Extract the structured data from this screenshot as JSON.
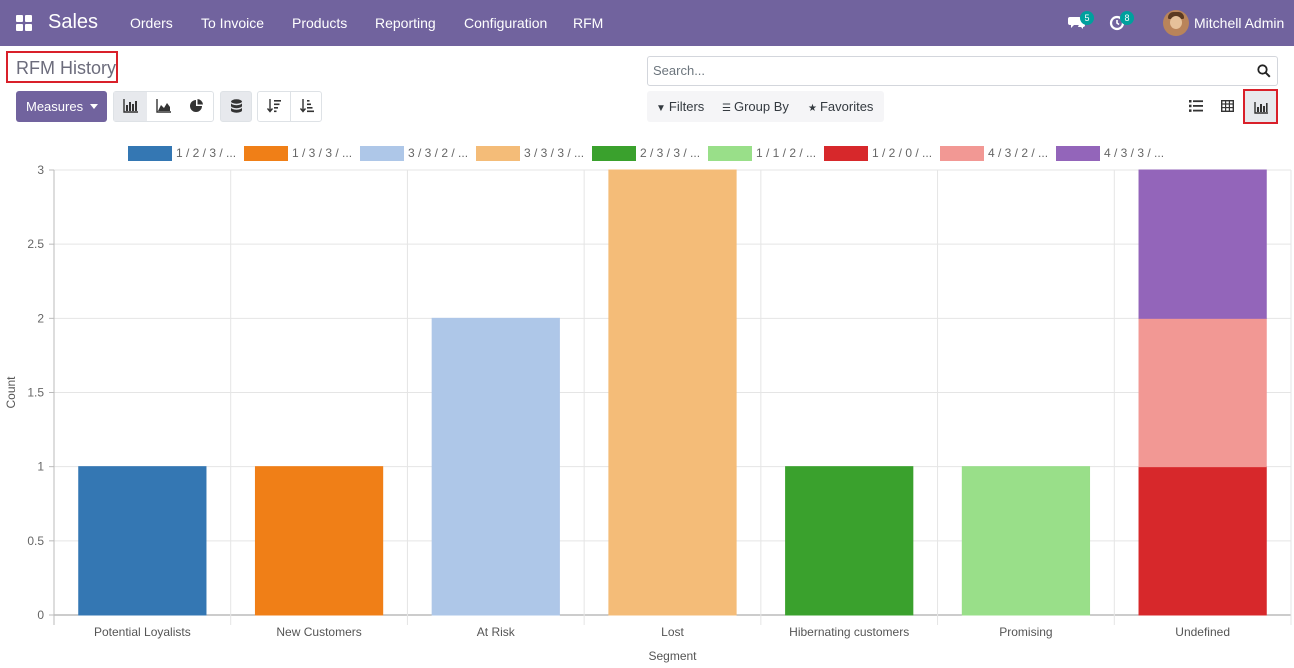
{
  "navbar": {
    "app_name": "Sales",
    "menu": [
      "Orders",
      "To Invoice",
      "Products",
      "Reporting",
      "Configuration",
      "RFM"
    ],
    "messages_badge": "5",
    "activities_badge": "8",
    "user": "Mitchell Admin",
    "color": "#71639e"
  },
  "control_panel": {
    "title": "RFM History",
    "search_placeholder": "Search...",
    "measures_label": "Measures",
    "filters_label": "Filters",
    "group_by_label": "Group By",
    "favorites_label": "Favorites",
    "view_icons": [
      "list-icon",
      "pivot-icon",
      "graph-icon"
    ],
    "active_view": "graph"
  },
  "chart_data": {
    "type": "bar",
    "stacked": true,
    "categories": [
      "Potential Loyalists",
      "New Customers",
      "At Risk",
      "Lost",
      "Hibernating customers",
      "Promising",
      "Undefined"
    ],
    "xlabel": "Segment",
    "ylabel": "Count",
    "ylim": [
      0,
      3
    ],
    "yticks": [
      "0",
      "0.5",
      "1",
      "1.5",
      "2",
      "2.5",
      "3"
    ],
    "grid": true,
    "legend_position": "top",
    "series": [
      {
        "name": "1 / 2 / 3 / ...",
        "color": "#3477b3",
        "values": [
          1,
          0,
          0,
          0,
          0,
          0,
          0
        ]
      },
      {
        "name": "1 / 3 / 3 / ...",
        "color": "#f07f17",
        "values": [
          0,
          1,
          0,
          0,
          0,
          0,
          0
        ]
      },
      {
        "name": "3 / 3 / 2 / ...",
        "color": "#aec7e8",
        "values": [
          0,
          0,
          2,
          0,
          0,
          0,
          0
        ]
      },
      {
        "name": "3 / 3 / 3 / ...",
        "color": "#f4bc78",
        "values": [
          0,
          0,
          0,
          3,
          0,
          0,
          0
        ]
      },
      {
        "name": "2 / 3 / 3 / ...",
        "color": "#3aa12d",
        "values": [
          0,
          0,
          0,
          0,
          1,
          0,
          0
        ]
      },
      {
        "name": "1 / 1 / 2 / ...",
        "color": "#99df89",
        "values": [
          0,
          0,
          0,
          0,
          0,
          1,
          0
        ]
      },
      {
        "name": "1 / 2 / 0 / ...",
        "color": "#d7282b",
        "values": [
          0,
          0,
          0,
          0,
          0,
          0,
          1
        ]
      },
      {
        "name": "4 / 3 / 2 / ...",
        "color": "#f29894",
        "values": [
          0,
          0,
          0,
          0,
          0,
          0,
          1
        ]
      },
      {
        "name": "4 / 3 / 3 / ...",
        "color": "#9365ba",
        "values": [
          0,
          0,
          0,
          0,
          0,
          0,
          1
        ]
      }
    ]
  }
}
